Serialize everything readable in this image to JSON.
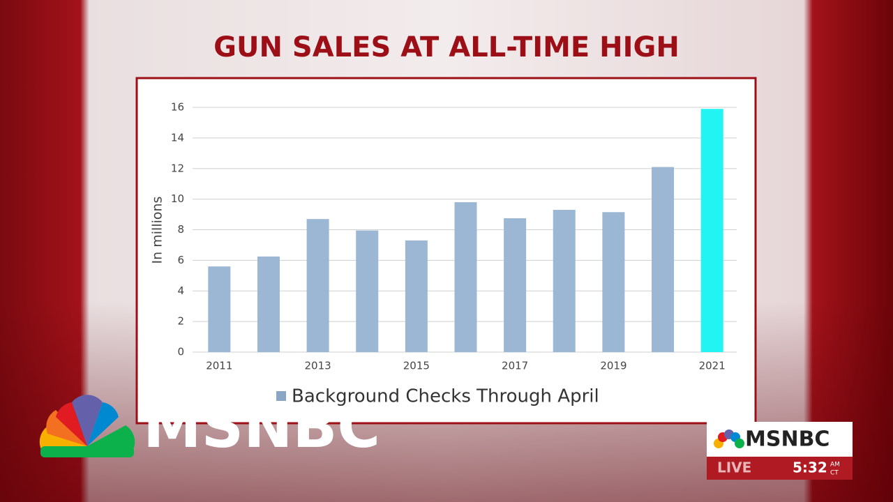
{
  "chart_data": {
    "type": "bar",
    "title": "GUN SALES AT ALL-TIME HIGH",
    "y_label": "In millions",
    "categories": [
      "2011",
      null,
      "2013",
      null,
      "2015",
      null,
      "2017",
      null,
      "2019",
      null,
      "2021"
    ],
    "series": [
      {
        "name": "Background Checks Through April",
        "color": "#9bb7d4",
        "values": [
          5.6,
          6.25,
          8.7,
          7.95,
          7.3,
          9.8,
          8.75,
          9.3,
          9.15,
          12.1,
          15.9
        ],
        "colors": [
          "#9bb7d4",
          "#9bb7d4",
          "#9bb7d4",
          "#9bb7d4",
          "#9bb7d4",
          "#9bb7d4",
          "#9bb7d4",
          "#9bb7d4",
          "#9bb7d4",
          "#9bb7d4",
          "#22f4f4"
        ]
      }
    ],
    "ylim": [
      0,
      16
    ],
    "yticks": [
      0,
      2,
      4,
      6,
      8,
      10,
      12,
      14,
      16
    ],
    "grid": true
  },
  "overlay": {
    "network": "MSNBC",
    "bug_network": "MSNBC",
    "live": "LIVE",
    "time": "5:32",
    "meridiem": "AM",
    "zone": "CT"
  }
}
